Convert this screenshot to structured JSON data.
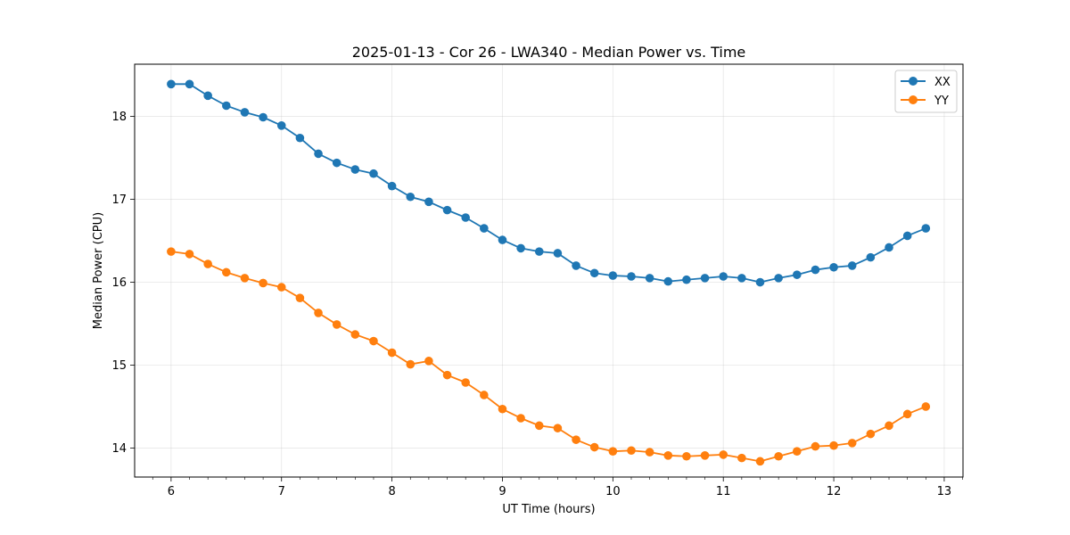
{
  "chart_data": {
    "type": "line",
    "title": "2025-01-13 - Cor 26 - LWA340 - Median Power vs. Time",
    "xlabel": "UT Time (hours)",
    "ylabel": "Median Power (CPU)",
    "xlim": [
      5.67,
      13.17
    ],
    "ylim": [
      13.65,
      18.63
    ],
    "x_ticks": [
      6,
      7,
      8,
      9,
      10,
      11,
      12,
      13
    ],
    "x_tick_labels": [
      "6",
      "7",
      "8",
      "9",
      "10",
      "11",
      "12",
      "13"
    ],
    "y_ticks": [
      14,
      15,
      16,
      17,
      18
    ],
    "y_tick_labels": [
      "14",
      "15",
      "16",
      "17",
      "18"
    ],
    "grid": true,
    "legend_position": "top-right",
    "x": [
      6.0,
      6.1667,
      6.3333,
      6.5,
      6.6667,
      6.8333,
      7.0,
      7.1667,
      7.3333,
      7.5,
      7.6667,
      7.8333,
      8.0,
      8.1667,
      8.3333,
      8.5,
      8.6667,
      8.8333,
      9.0,
      9.1667,
      9.3333,
      9.5,
      9.6667,
      9.8333,
      10.0,
      10.1667,
      10.3333,
      10.5,
      10.6667,
      10.8333,
      11.0,
      11.1667,
      11.3333,
      11.5,
      11.6667,
      11.8333,
      12.0,
      12.1667,
      12.3333,
      12.5,
      12.6667,
      12.8333
    ],
    "series": [
      {
        "name": "XX",
        "color": "#1f77b4",
        "values": [
          18.39,
          18.39,
          18.25,
          18.13,
          18.05,
          17.99,
          17.89,
          17.74,
          17.55,
          17.44,
          17.36,
          17.31,
          17.16,
          17.03,
          16.97,
          16.87,
          16.78,
          16.65,
          16.51,
          16.41,
          16.37,
          16.35,
          16.2,
          16.11,
          16.08,
          16.07,
          16.05,
          16.01,
          16.03,
          16.05,
          16.07,
          16.05,
          16.0,
          16.05,
          16.09,
          16.15,
          16.18,
          16.2,
          16.3,
          16.42,
          16.56,
          16.65
        ]
      },
      {
        "name": "YY",
        "color": "#ff7f0e",
        "values": [
          16.37,
          16.34,
          16.22,
          16.12,
          16.05,
          15.99,
          15.94,
          15.81,
          15.63,
          15.49,
          15.37,
          15.29,
          15.15,
          15.01,
          15.05,
          14.88,
          14.79,
          14.64,
          14.47,
          14.36,
          14.27,
          14.24,
          14.1,
          14.01,
          13.96,
          13.97,
          13.95,
          13.91,
          13.9,
          13.91,
          13.92,
          13.88,
          13.84,
          13.9,
          13.96,
          14.02,
          14.03,
          14.06,
          14.17,
          14.27,
          14.41,
          14.5
        ]
      }
    ]
  }
}
